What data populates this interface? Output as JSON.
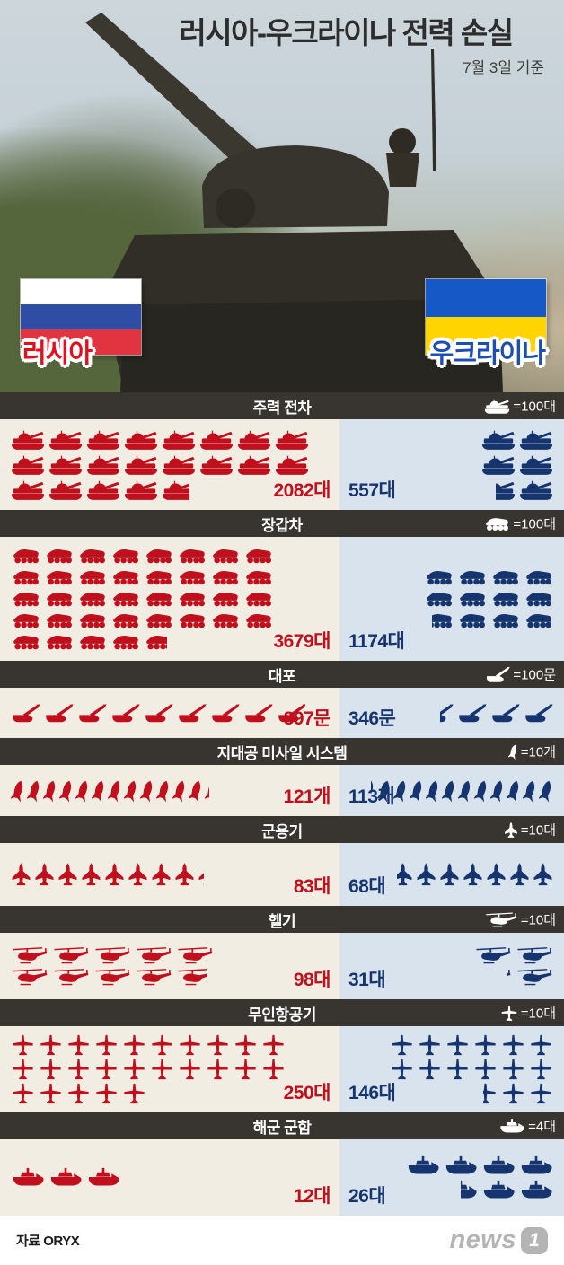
{
  "header": {
    "title": "러시아-우크라이나 전력 손실",
    "date_note": "7월 3일 기준"
  },
  "flags": {
    "russia": {
      "label": "러시아"
    },
    "ukraine": {
      "label": "우크라이나"
    }
  },
  "colors": {
    "russia_accent": "#c00f1d",
    "ukraine_accent": "#16356e",
    "russia_panel_bg": "#f2ede2",
    "ukraine_panel_bg": "#d8e3ed",
    "section_header_bg": "#383430",
    "russia_flag": [
      "#ffffff",
      "#2f4da5",
      "#e13440"
    ],
    "ukraine_flag": [
      "#1558c6",
      "#ffd400"
    ]
  },
  "chart_data": {
    "type": "bar",
    "variant": "pictograph",
    "title": "러시아-우크라이나 전력 손실",
    "subtitle": "7월 3일 기준",
    "categories": [
      "주력 전차",
      "장갑차",
      "대포",
      "지대공 미사일 시스템",
      "군용기",
      "헬기",
      "무인항공기",
      "해군 군함"
    ],
    "units": [
      "대",
      "대",
      "문",
      "개",
      "대",
      "대",
      "대",
      "대"
    ],
    "per_icon": [
      100,
      100,
      100,
      10,
      10,
      10,
      10,
      4
    ],
    "legend_labels": [
      "=100대",
      "=100대",
      "=100문",
      "=10개",
      "=10대",
      "=10대",
      "=10대",
      "=4대"
    ],
    "icon_names": [
      "tank-icon",
      "apc-icon",
      "artillery-icon",
      "missile-icon",
      "jet-icon",
      "helicopter-icon",
      "drone-icon",
      "ship-icon"
    ],
    "series": [
      {
        "name": "러시아",
        "color": "#c00f1d",
        "values": [
          2082,
          3679,
          897,
          121,
          83,
          98,
          250,
          12
        ],
        "value_labels": [
          "2082대",
          "3679대",
          "897문",
          "121개",
          "83대",
          "98대",
          "250대",
          "12대"
        ]
      },
      {
        "name": "우크라이나",
        "color": "#16356e",
        "values": [
          557,
          1174,
          346,
          113,
          68,
          31,
          146,
          26
        ],
        "value_labels": [
          "557대",
          "1174대",
          "346문",
          "113개",
          "68대",
          "31대",
          "146대",
          "26대"
        ]
      }
    ],
    "legend_position": "section-header-right",
    "grid": false
  },
  "footer": {
    "source": "자료 ORYX",
    "brand": {
      "text": "news",
      "digit": "1"
    }
  }
}
